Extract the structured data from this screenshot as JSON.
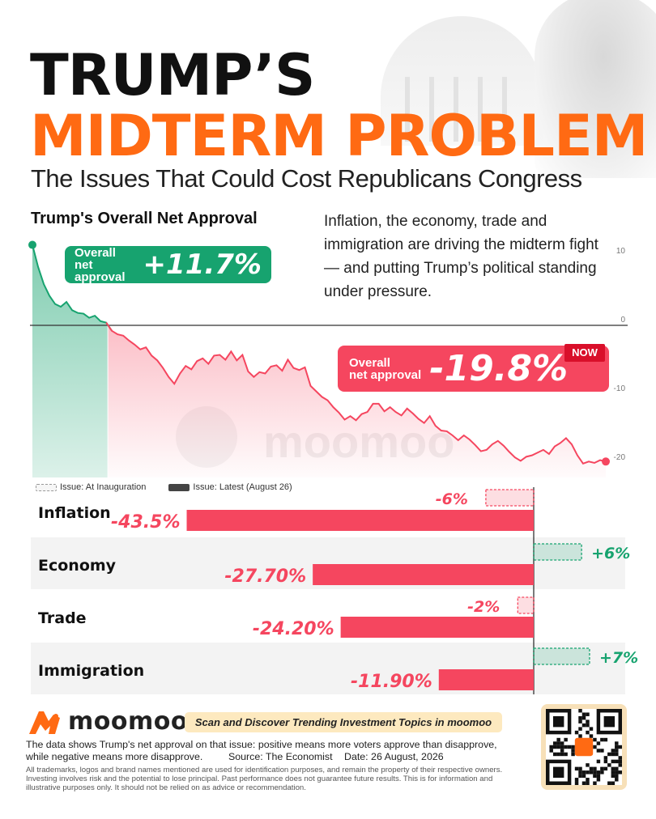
{
  "header": {
    "title_line1": "TRUMP’S",
    "title_line2": "MIDTERM PROBLEM",
    "subtitle": "The Issues That Could Cost Republicans Congress",
    "title_color_accent": "#ff6a13"
  },
  "approval_section": {
    "heading": "Trump's Overall Net Approval",
    "description": "Inflation, the economy, trade and immigration are driving the midterm fight — and putting Trump’s political standing under pressure.",
    "start_badge": {
      "label_line1": "Overall",
      "label_line2": "net approval",
      "value": "+11.7%",
      "color": "#17a36f"
    },
    "end_badge": {
      "label_line1": "Overall",
      "label_line2": "net approval",
      "value": "-19.8%",
      "tag": "NOW",
      "color": "#f5465f"
    },
    "watermark": "moomoo"
  },
  "bar_legend": {
    "inauguration": "Issue: At Inauguration",
    "latest": "Issue: Latest (August 26)"
  },
  "chart_data": [
    {
      "type": "area",
      "title": "Trump's Overall Net Approval",
      "ylim": [
        -21,
        12
      ],
      "yticks": [
        10,
        0,
        -10,
        -20
      ],
      "grid": false,
      "colors": {
        "positive": "#17a36f",
        "negative": "#f5465f"
      },
      "series": [
        {
          "values": [
            11.7,
            8.5,
            6.0,
            4.3,
            3.1,
            2.7,
            3.4,
            2.2,
            1.8,
            1.7,
            1.1,
            1.4,
            0.6,
            0.4,
            -0.8,
            -1.3,
            -1.5,
            -2.2,
            -2.8,
            -3.5,
            -3.2,
            -4.4,
            -5.1,
            -6.2,
            -7.5,
            -8.5,
            -7.0,
            -5.9,
            -6.4,
            -5.2,
            -4.8,
            -5.6,
            -4.4,
            -4.3,
            -5.0,
            -3.8,
            -5.1,
            -4.3,
            -6.7,
            -7.5,
            -6.8,
            -7.0,
            -6.0,
            -5.8,
            -6.6,
            -5.0,
            -6.2,
            -6.5,
            -6.1,
            -8.8,
            -9.6,
            -10.4,
            -10.9,
            -11.9,
            -12.7,
            -13.7,
            -13.2,
            -13.8,
            -12.9,
            -12.6,
            -11.4,
            -11.4,
            -12.5,
            -11.9,
            -12.6,
            -13.1,
            -12.1,
            -12.8,
            -13.6,
            -14.2,
            -13.2,
            -14.6,
            -15.3,
            -15.4,
            -16.0,
            -16.7,
            -16.0,
            -16.6,
            -17.4,
            -18.3,
            -18.1,
            -17.3,
            -16.8,
            -17.5,
            -18.4,
            -19.2,
            -19.7,
            -19.1,
            -18.9,
            -18.5,
            -18.1,
            -18.7,
            -17.6,
            -17.1,
            -16.4,
            -17.3,
            -18.9,
            -20.1,
            -19.8,
            -20.0,
            -19.6,
            -19.8
          ]
        }
      ]
    },
    {
      "type": "bar",
      "categories": [
        "Inflation",
        "Economy",
        "Trade",
        "Immigration"
      ],
      "series": [
        {
          "name": "Issue: At Inauguration",
          "values": [
            -6,
            6,
            -2,
            7
          ],
          "labels": [
            "-6%",
            "+6%",
            "-2%",
            "+7%"
          ]
        },
        {
          "name": "Issue: Latest (August 26)",
          "values": [
            -43.5,
            -27.7,
            -24.2,
            -11.9
          ],
          "labels": [
            "-43.5%",
            "-27.70%",
            "-24.20%",
            "-11.90%"
          ]
        }
      ],
      "colors": {
        "negative": "#f5465f",
        "positive": "#17a36f",
        "label_negative": "#f5465f",
        "label_positive": "#17a36f"
      }
    }
  ],
  "footer": {
    "brand": "moomoo",
    "scan_text": "Scan and Discover Trending Investment Topics in moomoo",
    "note": "The data shows Trump's net approval on that issue: positive means more voters approve than disapprove, while negative means more disapprove.",
    "source": "Source: The Economist",
    "date": "Date: 26 August, 2026",
    "disclaimer": "All trademarks, logos and brand names mentioned are used for identification purposes, and remain the property of their respective owners. Investing involves risk and the potential to lose principal. Past performance does not guarantee future results. This is for information and illustrative purposes only. It should not be relied on as advice or recommendation."
  }
}
